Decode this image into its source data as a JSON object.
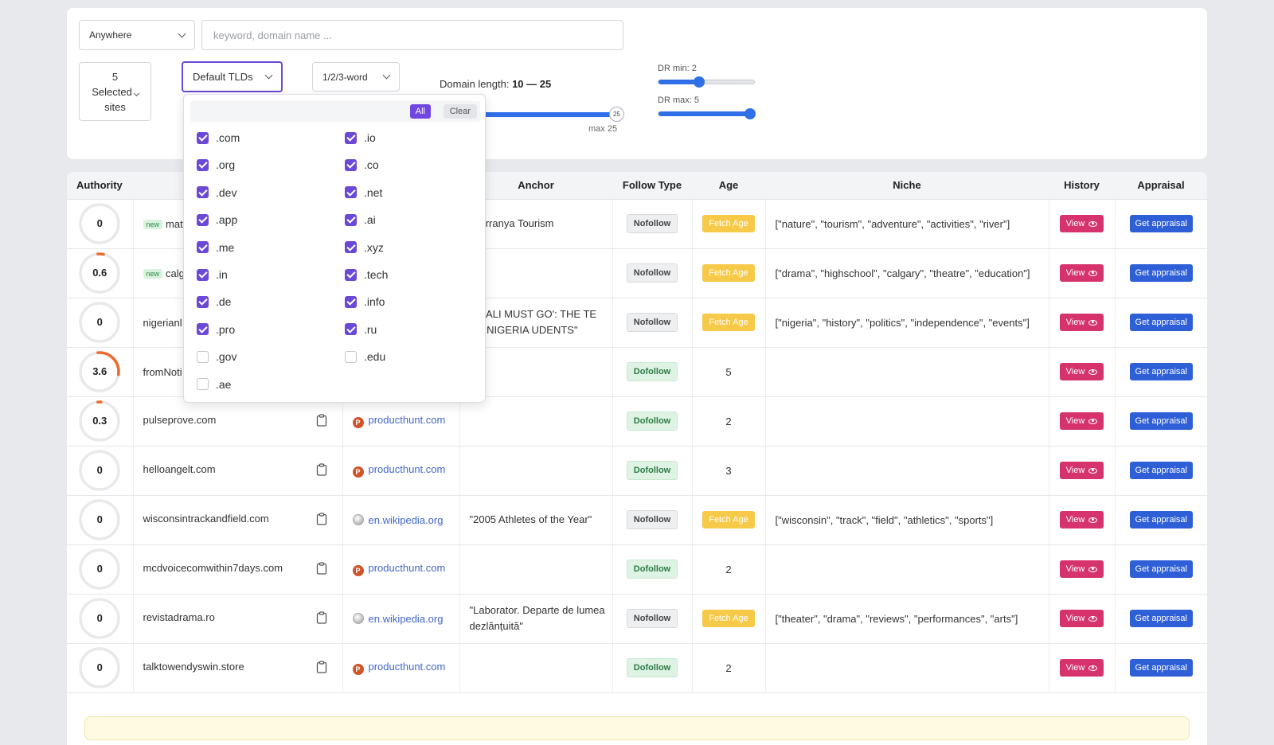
{
  "filters": {
    "location_select": "Anywhere",
    "keyword_placeholder": "keyword, domain name ...",
    "sites": {
      "count": "5",
      "label": "Selected",
      "suffix": "sites"
    },
    "tld_select": "Default TLDs",
    "word_select": "1/2/3-word",
    "domain_length": {
      "label": "Domain length:",
      "min": 10,
      "max": 25,
      "range_text": "10 — 25",
      "max_label": "max 25",
      "knob_label": "25"
    },
    "dr_min": {
      "label": "DR min: 2",
      "value": 2
    },
    "dr_max": {
      "label": "DR max: 5",
      "value": 5
    }
  },
  "tld_dropdown": {
    "all_label": "All",
    "clear_label": "Clear",
    "left_column": [
      {
        "tld": ".com",
        "checked": true
      },
      {
        "tld": ".org",
        "checked": true
      },
      {
        "tld": ".dev",
        "checked": true
      },
      {
        "tld": ".app",
        "checked": true
      },
      {
        "tld": ".me",
        "checked": true
      },
      {
        "tld": ".in",
        "checked": true
      },
      {
        "tld": ".de",
        "checked": true
      },
      {
        "tld": ".pro",
        "checked": true
      },
      {
        "tld": ".gov",
        "checked": false
      },
      {
        "tld": ".ae",
        "checked": false
      }
    ],
    "right_column": [
      {
        "tld": ".io",
        "checked": true
      },
      {
        "tld": ".co",
        "checked": true
      },
      {
        "tld": ".net",
        "checked": true
      },
      {
        "tld": ".ai",
        "checked": true
      },
      {
        "tld": ".xyz",
        "checked": true
      },
      {
        "tld": ".tech",
        "checked": true
      },
      {
        "tld": ".info",
        "checked": true
      },
      {
        "tld": ".ru",
        "checked": true
      },
      {
        "tld": ".edu",
        "checked": false
      }
    ]
  },
  "table": {
    "headers": {
      "authority": "Authority",
      "anchor": "Anchor",
      "follow_type": "Follow Type",
      "age": "Age",
      "niche": "Niche",
      "history": "History",
      "appraisal": "Appraisal"
    },
    "new_badge": "new",
    "fetch_age_label": "Fetch Age",
    "view_label": "View",
    "appraisal_label": "Get appraisal",
    "rows": [
      {
        "authority": "0",
        "authority_value": 0,
        "new": true,
        "domain": "mat",
        "source": "",
        "source_type": "",
        "anchor": "Utarranya Tourism",
        "follow": "Nofollow",
        "age": "",
        "niche": "[\"nature\", \"tourism\", \"adventure\", \"activities\", \"river\"]"
      },
      {
        "authority": "0.6",
        "authority_value": 0.6,
        "new": true,
        "domain": "calg",
        "source": "",
        "source_type": "",
        "anchor": "",
        "follow": "Nofollow",
        "age": "",
        "niche": "[\"drama\", \"highschool\", \"calgary\", \"theatre\", \"education\"]"
      },
      {
        "authority": "0",
        "authority_value": 0,
        "new": false,
        "domain": "nigerianl",
        "source": "",
        "source_type": "",
        "anchor": "78 'ALI MUST GO': THE TE OF NIGERIA UDENTS\"",
        "follow": "Nofollow",
        "age": "",
        "niche": "[\"nigeria\", \"history\", \"politics\", \"independence\", \"events\"]"
      },
      {
        "authority": "3.6",
        "authority_value": 3.6,
        "new": false,
        "domain": "fromNoti",
        "source": "",
        "source_type": "",
        "anchor": "",
        "follow": "Dofollow",
        "age": "5",
        "niche": ""
      },
      {
        "authority": "0.3",
        "authority_value": 0.3,
        "new": false,
        "domain": "pulseprove.com",
        "source": "producthunt.com",
        "source_type": "ph",
        "anchor": "",
        "follow": "Dofollow",
        "age": "2",
        "niche": ""
      },
      {
        "authority": "0",
        "authority_value": 0,
        "new": false,
        "domain": "helloangelt.com",
        "source": "producthunt.com",
        "source_type": "ph",
        "anchor": "",
        "follow": "Dofollow",
        "age": "3",
        "niche": ""
      },
      {
        "authority": "0",
        "authority_value": 0,
        "new": false,
        "domain": "wisconsintrackandfield.com",
        "source": "en.wikipedia.org",
        "source_type": "wiki",
        "anchor": "\"2005 Athletes of the Year\"",
        "follow": "Nofollow",
        "age": "",
        "niche": "[\"wisconsin\", \"track\", \"field\", \"athletics\", \"sports\"]"
      },
      {
        "authority": "0",
        "authority_value": 0,
        "new": false,
        "domain": "mcdvoicecomwithin7days.com",
        "source": "producthunt.com",
        "source_type": "ph",
        "anchor": "",
        "follow": "Dofollow",
        "age": "2",
        "niche": ""
      },
      {
        "authority": "0",
        "authority_value": 0,
        "new": false,
        "domain": "revistadrama.ro",
        "source": "en.wikipedia.org",
        "source_type": "wiki",
        "anchor": "\"Laborator. Departe de lumea dezlănțuită\"",
        "follow": "Nofollow",
        "age": "",
        "niche": "[\"theater\", \"drama\", \"reviews\", \"performances\", \"arts\"]"
      },
      {
        "authority": "0",
        "authority_value": 0,
        "new": false,
        "domain": "talktowendyswin.store",
        "source": "producthunt.com",
        "source_type": "ph",
        "anchor": "",
        "follow": "Dofollow",
        "age": "2",
        "niche": ""
      }
    ]
  },
  "colors": {
    "accent": "#6b48d6",
    "view": "#d6336c",
    "appraisal": "#2f5fd6",
    "gauge": "#ec6a2c",
    "fetch": "#f7c948"
  }
}
